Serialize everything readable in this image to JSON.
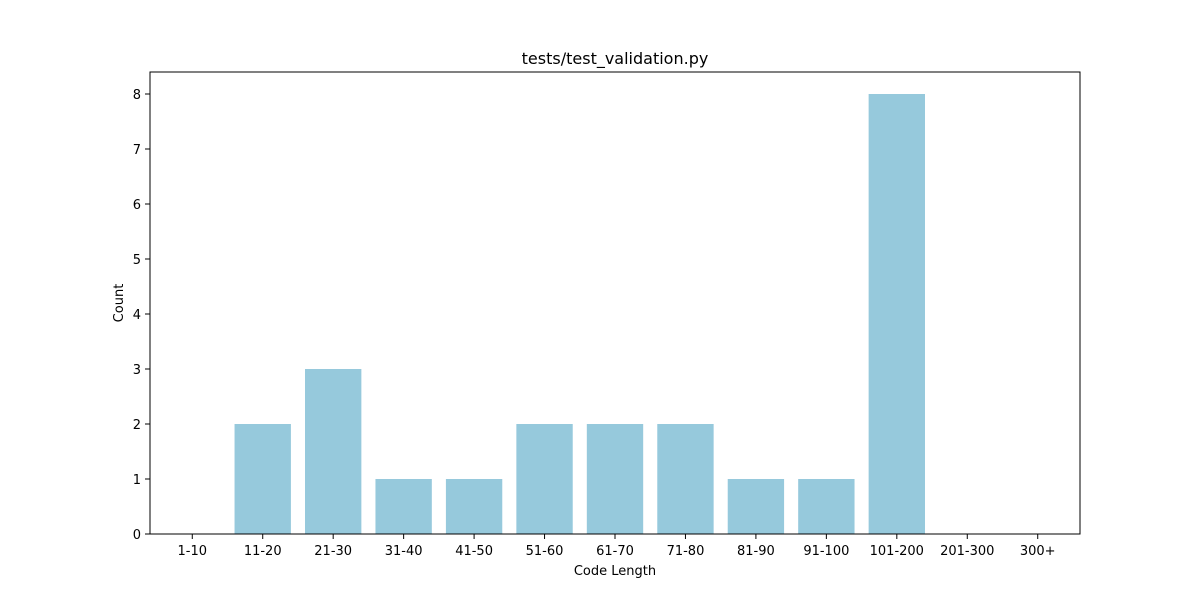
{
  "chart_data": {
    "type": "bar",
    "title": "tests/test_validation.py",
    "xlabel": "Code Length",
    "ylabel": "Count",
    "categories": [
      "1-10",
      "11-20",
      "21-30",
      "31-40",
      "41-50",
      "51-60",
      "61-70",
      "71-80",
      "81-90",
      "91-100",
      "101-200",
      "201-300",
      "300+"
    ],
    "values": [
      0,
      2,
      3,
      1,
      1,
      2,
      2,
      2,
      1,
      1,
      8,
      0,
      0
    ],
    "ylim": [
      0,
      8.4
    ],
    "yticks": [
      0,
      1,
      2,
      3,
      4,
      5,
      6,
      7,
      8
    ],
    "bar_color": "#96c9dc",
    "grid": false,
    "legend": "none"
  }
}
